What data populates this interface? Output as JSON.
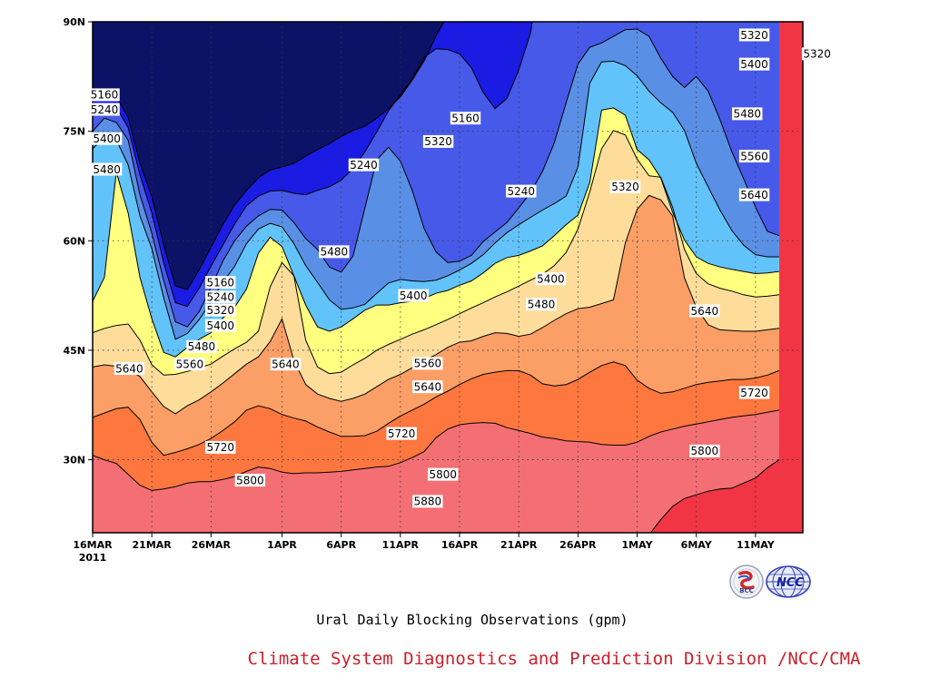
{
  "chart_data": {
    "type": "contour",
    "caption": "Ural Daily Blocking Observations (gpm)",
    "credit": "Climate System Diagnostics and Prediction Division /NCC/CMA",
    "x_unit_days": "days",
    "x_ticks": [
      {
        "label": "16MAR",
        "sub": "2011",
        "date": "2011-03-16"
      },
      {
        "label": "21MAR",
        "date": "2011-03-21"
      },
      {
        "label": "26MAR",
        "date": "2011-03-26"
      },
      {
        "label": "1APR",
        "date": "2011-04-01"
      },
      {
        "label": "6APR",
        "date": "2011-04-06"
      },
      {
        "label": "11APR",
        "date": "2011-04-11"
      },
      {
        "label": "16APR",
        "date": "2011-04-16"
      },
      {
        "label": "21APR",
        "date": "2011-04-21"
      },
      {
        "label": "26APR",
        "date": "2011-04-26"
      },
      {
        "label": "1MAY",
        "date": "2011-05-01"
      },
      {
        "label": "6MAY",
        "date": "2011-05-06"
      },
      {
        "label": "11MAY",
        "date": "2011-05-11"
      }
    ],
    "y_ticks": [
      {
        "label": "30N",
        "lat": 30
      },
      {
        "label": "45N",
        "lat": 45
      },
      {
        "label": "60N",
        "lat": 60
      },
      {
        "label": "75N",
        "lat": 75
      },
      {
        "label": "90N",
        "lat": 90
      }
    ],
    "xlim": [
      "2011-03-16",
      "2011-05-15"
    ],
    "ylim": [
      20,
      90
    ],
    "grid": true,
    "levels": [
      5160,
      5240,
      5320,
      5400,
      5480,
      5560,
      5640,
      5720,
      5800,
      5880
    ],
    "colors": [
      "#0c1266",
      "#1a1be3",
      "#4759e8",
      "#5a8fe6",
      "#62c3fa",
      "#ffff80",
      "#fedd9b",
      "#fc9f67",
      "#fd773f",
      "#f46f74",
      "#f23544"
    ],
    "profiles": [
      {
        "value": 5880,
        "lat": [
          10,
          10,
          10,
          10,
          10,
          10,
          10,
          10,
          10,
          10,
          10,
          10,
          10,
          10,
          10,
          10,
          10,
          10,
          10,
          10,
          10,
          10,
          10,
          10,
          10,
          10,
          10,
          10,
          10,
          10,
          10,
          10,
          10,
          10,
          10,
          10,
          10,
          10,
          10,
          10,
          10,
          10,
          10,
          10,
          10,
          10,
          10,
          19.7,
          21.8,
          23.6,
          24.7,
          25.2,
          25.7,
          26,
          26.1,
          26.8,
          27.5,
          28.9,
          30
        ]
      },
      {
        "value": 5800,
        "lat": [
          30.6,
          30,
          29.5,
          28,
          26.5,
          25.8,
          26,
          26.3,
          26.8,
          27,
          27,
          27.3,
          27.7,
          28.4,
          29,
          28.8,
          28.3,
          28.1,
          28.2,
          28.2,
          28.3,
          28.4,
          28.6,
          28.8,
          29,
          29.1,
          29.6,
          30.3,
          31.1,
          33,
          34.2,
          34.8,
          35,
          35.1,
          35,
          34.4,
          34,
          33.6,
          33.1,
          32.9,
          32.6,
          32.5,
          32.4,
          32.1,
          32,
          32,
          32.4,
          33.2,
          33.8,
          34.2,
          34.6,
          34.9,
          35.2,
          35.5,
          35.8,
          36,
          36.2,
          36.5,
          36.8
        ]
      },
      {
        "value": 5720,
        "lat": [
          35.8,
          36.4,
          37,
          37.2,
          35.5,
          32.4,
          30.6,
          31,
          31.5,
          32.1,
          32.9,
          34,
          35.2,
          36.8,
          37.4,
          37,
          36.2,
          35.7,
          35.3,
          34.5,
          33.8,
          33.2,
          33.2,
          33.3,
          33.9,
          35,
          36,
          36.8,
          37.6,
          38.6,
          39.4,
          40.3,
          41.1,
          41.7,
          42,
          42.2,
          42.2,
          41.6,
          40.4,
          40.1,
          40.3,
          41,
          42,
          42.9,
          43.4,
          42.9,
          40.9,
          39.8,
          39.1,
          39.3,
          39.8,
          40.3,
          40.6,
          40.8,
          41,
          41,
          41.2,
          41.6,
          42.2
        ]
      },
      {
        "value": 5640,
        "lat": [
          42.7,
          43,
          42.8,
          42.4,
          41.4,
          39.3,
          37.3,
          36.3,
          37.4,
          38.2,
          39.3,
          40.5,
          41.8,
          43.1,
          44.1,
          46.2,
          49.3,
          43.6,
          40.3,
          39,
          38.4,
          38,
          38.4,
          39,
          40,
          41,
          41.7,
          42.6,
          43.6,
          44.4,
          45.4,
          46.1,
          46.3,
          46.9,
          47.4,
          47.3,
          46.9,
          47.2,
          48.1,
          49.1,
          50,
          50.7,
          50.9,
          51.4,
          51.9,
          59.7,
          64.3,
          66.2,
          65.6,
          63.4,
          54.9,
          50.9,
          48.5,
          47.8,
          47.7,
          47.6,
          47.6,
          47.8,
          48
        ]
      },
      {
        "value": 5560,
        "lat": [
          47.4,
          48,
          48.4,
          48.6,
          46.4,
          43,
          41.6,
          41.7,
          42.1,
          42.6,
          43.1,
          44.2,
          45.2,
          46.1,
          47.6,
          53.7,
          57,
          55.2,
          46.4,
          42.7,
          41.8,
          42,
          43,
          43.9,
          45,
          45.8,
          46.5,
          47.2,
          47.8,
          48.5,
          49.2,
          50,
          50.8,
          51.5,
          52.3,
          53,
          53.8,
          54.6,
          55.4,
          56.6,
          58.4,
          61.6,
          66.7,
          72.6,
          75.1,
          74.5,
          71.2,
          68.9,
          68.7,
          64.6,
          58.8,
          55.5,
          54.1,
          53.5,
          53.1,
          52.6,
          52.3,
          52.4,
          52.6
        ]
      },
      {
        "value": 5480,
        "lat": [
          51.7,
          55,
          69.4,
          63.8,
          55,
          49.3,
          44.7,
          44.1,
          45.4,
          46.5,
          47.4,
          49.4,
          50.9,
          53.4,
          58.3,
          60.5,
          59.2,
          55.2,
          51.2,
          48.2,
          47.6,
          48.2,
          49.3,
          50.5,
          51.2,
          51.2,
          51.5,
          51.7,
          52.1,
          52.8,
          53.2,
          53.9,
          54.5,
          55.6,
          56.9,
          57.7,
          58,
          58.6,
          59.3,
          60.7,
          62.2,
          63.5,
          68,
          77.9,
          78.2,
          77.2,
          72.5,
          71.1,
          68.6,
          63.9,
          60.1,
          57.8,
          56.9,
          56.4,
          56.1,
          55.8,
          55.5,
          55.6,
          55.8
        ]
      },
      {
        "value": 5400,
        "lat": [
          72.6,
          74.2,
          73.8,
          70.4,
          63.4,
          58.9,
          52.2,
          46.5,
          47.3,
          49.2,
          51.6,
          54.3,
          56.5,
          59.6,
          61.6,
          62.4,
          61.9,
          59.6,
          56.6,
          54.3,
          51.9,
          50.6,
          50.8,
          51.3,
          52.8,
          54.2,
          54.7,
          54.5,
          54.4,
          54.6,
          55.2,
          56,
          56.9,
          58.1,
          59.7,
          61.1,
          62.2,
          63.2,
          64.2,
          65.1,
          66.1,
          70.1,
          81.6,
          84.5,
          84.6,
          84,
          82.6,
          80.5,
          78.9,
          77.6,
          75.1,
          70.6,
          67.4,
          64.2,
          61.4,
          59.4,
          58.1,
          57.8,
          57.8
        ]
      },
      {
        "value": 5320,
        "lat": [
          75,
          76.8,
          76.2,
          73.8,
          66.3,
          61,
          54.6,
          48.9,
          48.2,
          50.3,
          53.6,
          57.2,
          60,
          62,
          63.4,
          64.3,
          64.2,
          62.5,
          60.3,
          58.8,
          56.4,
          55.7,
          57.9,
          64.5,
          71.1,
          72.8,
          70.9,
          66.9,
          61.7,
          58.5,
          57,
          57.2,
          58,
          59.9,
          61.2,
          62.5,
          64.5,
          66.6,
          69.5,
          73.4,
          78.9,
          84.2,
          86.5,
          87.1,
          88,
          88.9,
          89,
          88,
          85,
          82.5,
          81,
          82.5,
          80.5,
          76.6,
          72.2,
          68.5,
          64.6,
          61.3,
          60.7
        ]
      },
      {
        "value": 5240,
        "lat": [
          78,
          78.8,
          78.3,
          75.5,
          69,
          63.8,
          57,
          51.5,
          51,
          53.5,
          56.5,
          59.4,
          62.3,
          64.8,
          66.1,
          66.8,
          66.9,
          66.5,
          66.3,
          66.9,
          67.4,
          68.3,
          69.9,
          72.2,
          74.9,
          77.8,
          80,
          82.2,
          85.1,
          86.3,
          86.2,
          85.6,
          83.7,
          80.3,
          78.1,
          79.5,
          83.4,
          88.5,
          99,
          99,
          99,
          99,
          99,
          99,
          99,
          99,
          99,
          99,
          99,
          99,
          99,
          99,
          99,
          99,
          99,
          99,
          99,
          99,
          99
        ]
      },
      {
        "value": 5160,
        "lat": [
          79.5,
          80.5,
          79.7,
          76.9,
          70.6,
          66,
          59.4,
          53.8,
          53.3,
          56,
          59.1,
          62.2,
          64.9,
          66.9,
          68.6,
          69.7,
          70.1,
          70.6,
          71.6,
          72.5,
          73.3,
          74.3,
          75.1,
          75.7,
          76.8,
          78.1,
          79.7,
          82,
          84.6,
          88,
          91,
          99,
          99,
          99,
          99,
          99,
          99,
          99,
          99,
          99,
          99,
          99,
          99,
          99,
          99,
          99,
          99,
          99,
          99,
          99,
          99,
          99,
          99,
          99,
          99,
          99,
          99,
          99,
          99
        ]
      }
    ],
    "contour_labels": [
      {
        "text": "5160",
        "day": 1,
        "lat": 80
      },
      {
        "text": "5240",
        "day": 1,
        "lat": 78
      },
      {
        "text": "5400",
        "day": 1.2,
        "lat": 74
      },
      {
        "text": "5480",
        "day": 1.2,
        "lat": 69.8
      },
      {
        "text": "5640",
        "day": 3.1,
        "lat": 42.5
      },
      {
        "text": "5160",
        "day": 10.8,
        "lat": 54.3
      },
      {
        "text": "5240",
        "day": 10.8,
        "lat": 52.3
      },
      {
        "text": "5320",
        "day": 10.8,
        "lat": 50.5
      },
      {
        "text": "5400",
        "day": 10.8,
        "lat": 48.4
      },
      {
        "text": "5480",
        "day": 9.2,
        "lat": 45.5
      },
      {
        "text": "5560",
        "day": 8.2,
        "lat": 43.1
      },
      {
        "text": "5720",
        "day": 10.8,
        "lat": 31.7
      },
      {
        "text": "5800",
        "day": 13.3,
        "lat": 27.2
      },
      {
        "text": "5640",
        "day": 16.3,
        "lat": 43.1
      },
      {
        "text": "5480",
        "day": 20.4,
        "lat": 58.5
      },
      {
        "text": "5240",
        "day": 22.9,
        "lat": 70.4
      },
      {
        "text": "5400",
        "day": 27.1,
        "lat": 52.5
      },
      {
        "text": "5560",
        "day": 28.3,
        "lat": 43.2
      },
      {
        "text": "5640",
        "day": 28.3,
        "lat": 40
      },
      {
        "text": "5320",
        "day": 29.2,
        "lat": 73.6
      },
      {
        "text": "5160",
        "day": 31.5,
        "lat": 76.8
      },
      {
        "text": "5720",
        "day": 26.1,
        "lat": 33.6
      },
      {
        "text": "5800",
        "day": 29.6,
        "lat": 28
      },
      {
        "text": "5880",
        "day": 28.3,
        "lat": 24.3
      },
      {
        "text": "5240",
        "day": 36.2,
        "lat": 66.8
      },
      {
        "text": "5400",
        "day": 38.7,
        "lat": 54.8
      },
      {
        "text": "5480",
        "day": 37.9,
        "lat": 51.3
      },
      {
        "text": "5320",
        "day": 45,
        "lat": 67.4
      },
      {
        "text": "5640",
        "day": 51.7,
        "lat": 50.4
      },
      {
        "text": "5800",
        "day": 51.7,
        "lat": 31.2
      },
      {
        "text": "5720",
        "day": 55.9,
        "lat": 39.2
      },
      {
        "text": "5640",
        "day": 55.9,
        "lat": 66.3
      },
      {
        "text": "5560",
        "day": 55.9,
        "lat": 71.6
      },
      {
        "text": "5480",
        "day": 55.3,
        "lat": 77.4
      },
      {
        "text": "5400",
        "day": 55.9,
        "lat": 84.2
      },
      {
        "text": "5320",
        "day": 55.9,
        "lat": 88.2
      },
      {
        "text": "5320",
        "day": 61.2,
        "lat": 85.6
      }
    ]
  }
}
